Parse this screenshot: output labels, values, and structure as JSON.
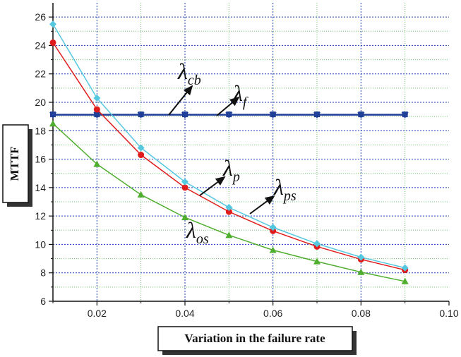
{
  "chart_data": {
    "type": "line",
    "title": "",
    "xlabel": "Variation in the failure rate",
    "ylabel": "MTTF",
    "xlim": [
      0.01,
      0.1
    ],
    "ylim": [
      6,
      27
    ],
    "x_ticks": [
      "0.02",
      "0.04",
      "0.06",
      "0.08",
      "0.10"
    ],
    "y_ticks": [
      "6",
      "8",
      "10",
      "12",
      "14",
      "16",
      "18",
      "20",
      "22",
      "24",
      "26"
    ],
    "grid": true,
    "x": [
      0.01,
      0.02,
      0.03,
      0.04,
      0.05,
      0.06,
      0.07,
      0.08,
      0.09
    ],
    "series": [
      {
        "name": "λcb",
        "label_main": "λ",
        "label_sub": "cb",
        "color": "#1f3f99",
        "marker": "triangle-down",
        "values": [
          19.1,
          19.1,
          19.1,
          19.1,
          19.1,
          19.1,
          19.1,
          19.1,
          19.1
        ]
      },
      {
        "name": "λf",
        "label_main": "λ",
        "label_sub": "f",
        "color": "#1f3f99",
        "marker": "square",
        "values": [
          19.15,
          19.15,
          19.15,
          19.15,
          19.15,
          19.15,
          19.15,
          19.15,
          19.15
        ]
      },
      {
        "name": "λp",
        "label_main": "λ",
        "label_sub": "p",
        "color": "#e01b1b",
        "marker": "circle",
        "values": [
          24.2,
          19.5,
          16.3,
          14.0,
          12.3,
          10.95,
          9.85,
          8.95,
          8.2
        ]
      },
      {
        "name": "λps",
        "label_main": "λ",
        "label_sub": "ps",
        "color": "#55c8e0",
        "marker": "diamond",
        "values": [
          25.5,
          20.3,
          16.8,
          14.4,
          12.6,
          11.2,
          10.05,
          9.1,
          8.35
        ]
      },
      {
        "name": "λos",
        "label_main": "λ",
        "label_sub": "os",
        "color": "#4fae2e",
        "marker": "triangle-up",
        "values": [
          18.5,
          15.65,
          13.5,
          11.9,
          10.65,
          9.6,
          8.8,
          8.05,
          7.4
        ]
      }
    ]
  }
}
